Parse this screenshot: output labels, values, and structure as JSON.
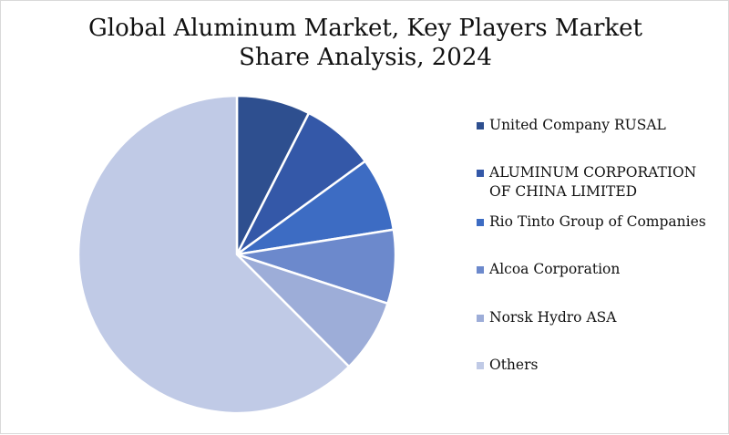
{
  "title_line1": "Global Aluminum Market, Key Players Market",
  "title_line2": "Share Analysis, 2024",
  "chart_data": {
    "type": "pie",
    "title": "Global Aluminum Market, Key Players Market Share Analysis, 2024",
    "legend_position": "right",
    "start_angle": "12 o'clock",
    "direction": "clockwise",
    "slices": [
      {
        "label": "United Company RUSAL",
        "value": 7.5,
        "color": "#2e4f8f"
      },
      {
        "label": "ALUMINUM CORPORATION OF CHINA LIMITED",
        "value": 7.5,
        "color": "#3458a8"
      },
      {
        "label": "Rio Tinto Group of Companies",
        "value": 7.5,
        "color": "#3d6cc3"
      },
      {
        "label": "Alcoa Corporation",
        "value": 7.5,
        "color": "#6c89cc"
      },
      {
        "label": "Norsk Hydro ASA",
        "value": 7.5,
        "color": "#9dadd8"
      },
      {
        "label": "Others",
        "value": 62.5,
        "color": "#c0cae6"
      }
    ]
  }
}
